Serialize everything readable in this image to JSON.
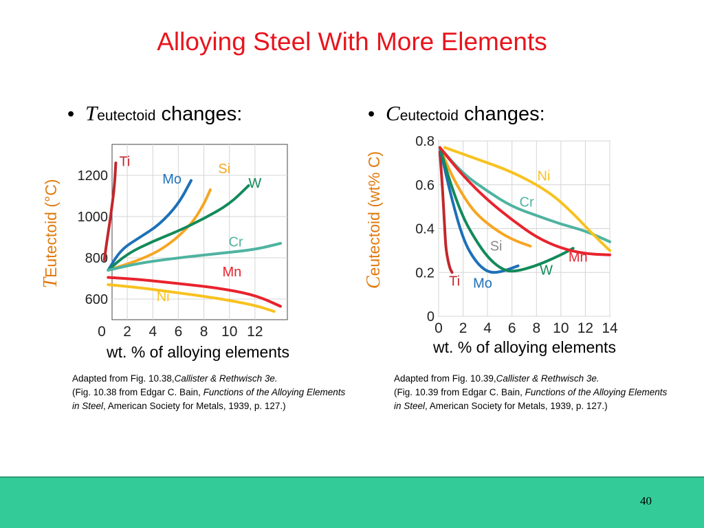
{
  "slide": {
    "title": "Alloying Steel With More Elements",
    "page_number": "40"
  },
  "bullets": {
    "left": {
      "symbol": "T",
      "subscript": "eutectoid",
      "text": "changes:"
    },
    "right": {
      "symbol": "C",
      "subscript": "eutectoid",
      "text": "changes:"
    }
  },
  "captions": {
    "left": {
      "line1": "Adapted from Fig. 10.38,",
      "ref": "Callister & Rethwisch 3e.",
      "line2": "(Fig. 10.38 from Edgar C. Bain,",
      "book": "Functions of the Alloying Elements in Steel",
      "rest": ", American Society for Metals, 1939, p. 127.)"
    },
    "right": {
      "line1": "Adapted from Fig. 10.39,",
      "ref": "Callister & Rethwisch 3e.",
      "line2": "(Fig. 10.39 from Edgar C. Bain,",
      "book": "Functions of the Alloying Elements in Steel",
      "rest": ", American Society for Metals, 1939, p. 127.)"
    }
  },
  "chart_data": [
    {
      "type": "line",
      "xlabel": "wt. % of alloying elements",
      "ylabel_symbol": "T",
      "ylabel_rest": "Eutectoid (°C)",
      "xlim": [
        0,
        14
      ],
      "ylim": [
        500,
        1350
      ],
      "x_ticks": [
        "0",
        "2",
        "4",
        "6",
        "8",
        "10",
        "12"
      ],
      "y_ticks": [
        "600",
        "800",
        "1000",
        "1200"
      ],
      "grid": true,
      "series": [
        {
          "name": "Ti",
          "color": "#c1272d",
          "x": [
            0.2,
            0.4,
            0.6,
            0.8,
            1.0,
            1.1
          ],
          "y": [
            790,
            880,
            960,
            1050,
            1150,
            1260
          ]
        },
        {
          "name": "Mo",
          "color": "#1d70b8",
          "x": [
            0.5,
            1.5,
            3,
            4.5,
            6,
            7
          ],
          "y": [
            740,
            840,
            900,
            960,
            1060,
            1175
          ]
        },
        {
          "name": "Si",
          "color": "#f6a623",
          "x": [
            0.5,
            3,
            5,
            7,
            8,
            8.5
          ],
          "y": [
            740,
            790,
            850,
            960,
            1060,
            1130
          ]
        },
        {
          "name": "W",
          "color": "#128a5a",
          "x": [
            0.5,
            2,
            4,
            6,
            8,
            10,
            11.5
          ],
          "y": [
            740,
            820,
            880,
            930,
            990,
            1060,
            1150
          ]
        },
        {
          "name": "Cr",
          "color": "#4fb3a0",
          "x": [
            0.5,
            3,
            6,
            9,
            12,
            14
          ],
          "y": [
            740,
            775,
            800,
            820,
            840,
            870
          ]
        },
        {
          "name": "Mn",
          "color": "#e8232d",
          "x": [
            0.5,
            3,
            6,
            9,
            12,
            14
          ],
          "y": [
            705,
            695,
            675,
            655,
            620,
            565
          ]
        },
        {
          "name": "Ni",
          "color": "#f8c21f",
          "x": [
            0.5,
            3,
            6,
            9,
            12,
            13.5
          ],
          "y": [
            670,
            655,
            630,
            605,
            570,
            540
          ]
        }
      ],
      "labels": [
        {
          "text": "Ti",
          "x": 1.8,
          "y": 1245,
          "color": "#c1272d"
        },
        {
          "text": "Mo",
          "x": 5.5,
          "y": 1160,
          "color": "#1d70b8"
        },
        {
          "text": "Si",
          "x": 9.6,
          "y": 1210,
          "color": "#f6a623"
        },
        {
          "text": "W",
          "x": 12.0,
          "y": 1140,
          "color": "#128a5a"
        },
        {
          "text": "Cr",
          "x": 10.5,
          "y": 855,
          "color": "#4fb3a0"
        },
        {
          "text": "Mn",
          "x": 10.2,
          "y": 710,
          "color": "#e8232d"
        },
        {
          "text": "Ni",
          "x": 4.8,
          "y": 590,
          "color": "#f8c21f"
        }
      ]
    },
    {
      "type": "line",
      "xlabel": "wt. % of alloying elements",
      "ylabel_symbol": "C",
      "ylabel_rest": "eutectoid (wt% C)",
      "xlim": [
        0,
        14
      ],
      "ylim": [
        0,
        0.8
      ],
      "x_ticks": [
        "0",
        "2",
        "4",
        "6",
        "8",
        "10",
        "12",
        "14"
      ],
      "y_ticks": [
        "0",
        "0.2",
        "0.4",
        "0.6",
        "0.8"
      ],
      "grid": true,
      "series": [
        {
          "name": "Ti",
          "color": "#c1272d",
          "x": [
            0.1,
            0.3,
            0.5,
            0.6,
            0.9,
            1.1
          ],
          "y": [
            0.75,
            0.6,
            0.4,
            0.3,
            0.22,
            0.2
          ]
        },
        {
          "name": "Mo",
          "color": "#1d70b8",
          "x": [
            0.1,
            1,
            2,
            3,
            4,
            5,
            6.5
          ],
          "y": [
            0.77,
            0.55,
            0.35,
            0.25,
            0.2,
            0.2,
            0.23
          ]
        },
        {
          "name": "Si",
          "color": "#f6a623",
          "x": [
            0.1,
            1,
            2,
            3,
            4.5,
            6,
            7.5
          ],
          "y": [
            0.77,
            0.65,
            0.55,
            0.47,
            0.4,
            0.35,
            0.32
          ]
        },
        {
          "name": "W",
          "color": "#128a5a",
          "x": [
            0.1,
            1,
            2,
            3,
            4,
            5,
            6,
            8,
            10,
            11
          ],
          "y": [
            0.77,
            0.6,
            0.45,
            0.35,
            0.27,
            0.22,
            0.2,
            0.23,
            0.28,
            0.31
          ]
        },
        {
          "name": "Cr",
          "color": "#4fb3a0",
          "x": [
            0.1,
            2,
            4,
            6,
            8,
            10,
            12,
            14
          ],
          "y": [
            0.77,
            0.65,
            0.57,
            0.5,
            0.46,
            0.42,
            0.39,
            0.34
          ]
        },
        {
          "name": "Mn",
          "color": "#e8232d",
          "x": [
            0.1,
            2,
            4,
            6,
            8,
            10,
            12,
            14
          ],
          "y": [
            0.77,
            0.64,
            0.53,
            0.44,
            0.36,
            0.31,
            0.285,
            0.28
          ]
        },
        {
          "name": "Ni",
          "color": "#f8c21f",
          "x": [
            0.5,
            3,
            6,
            9,
            11,
            12.5,
            14
          ],
          "y": [
            0.77,
            0.72,
            0.66,
            0.57,
            0.47,
            0.38,
            0.3
          ]
        }
      ],
      "labels": [
        {
          "text": "Ni",
          "x": 8.6,
          "y": 0.62,
          "color": "#f8c21f"
        },
        {
          "text": "Cr",
          "x": 7.2,
          "y": 0.5,
          "color": "#4fb3a0"
        },
        {
          "text": "Si",
          "x": 4.7,
          "y": 0.3,
          "color": "#8a8a8a"
        },
        {
          "text": "Mn",
          "x": 11.4,
          "y": 0.25,
          "color": "#e8232d"
        },
        {
          "text": "W",
          "x": 8.8,
          "y": 0.19,
          "color": "#128a5a"
        },
        {
          "text": "Ti",
          "x": 1.3,
          "y": 0.14,
          "color": "#c1272d"
        },
        {
          "text": "Mo",
          "x": 3.6,
          "y": 0.13,
          "color": "#1d70b8"
        }
      ]
    }
  ]
}
